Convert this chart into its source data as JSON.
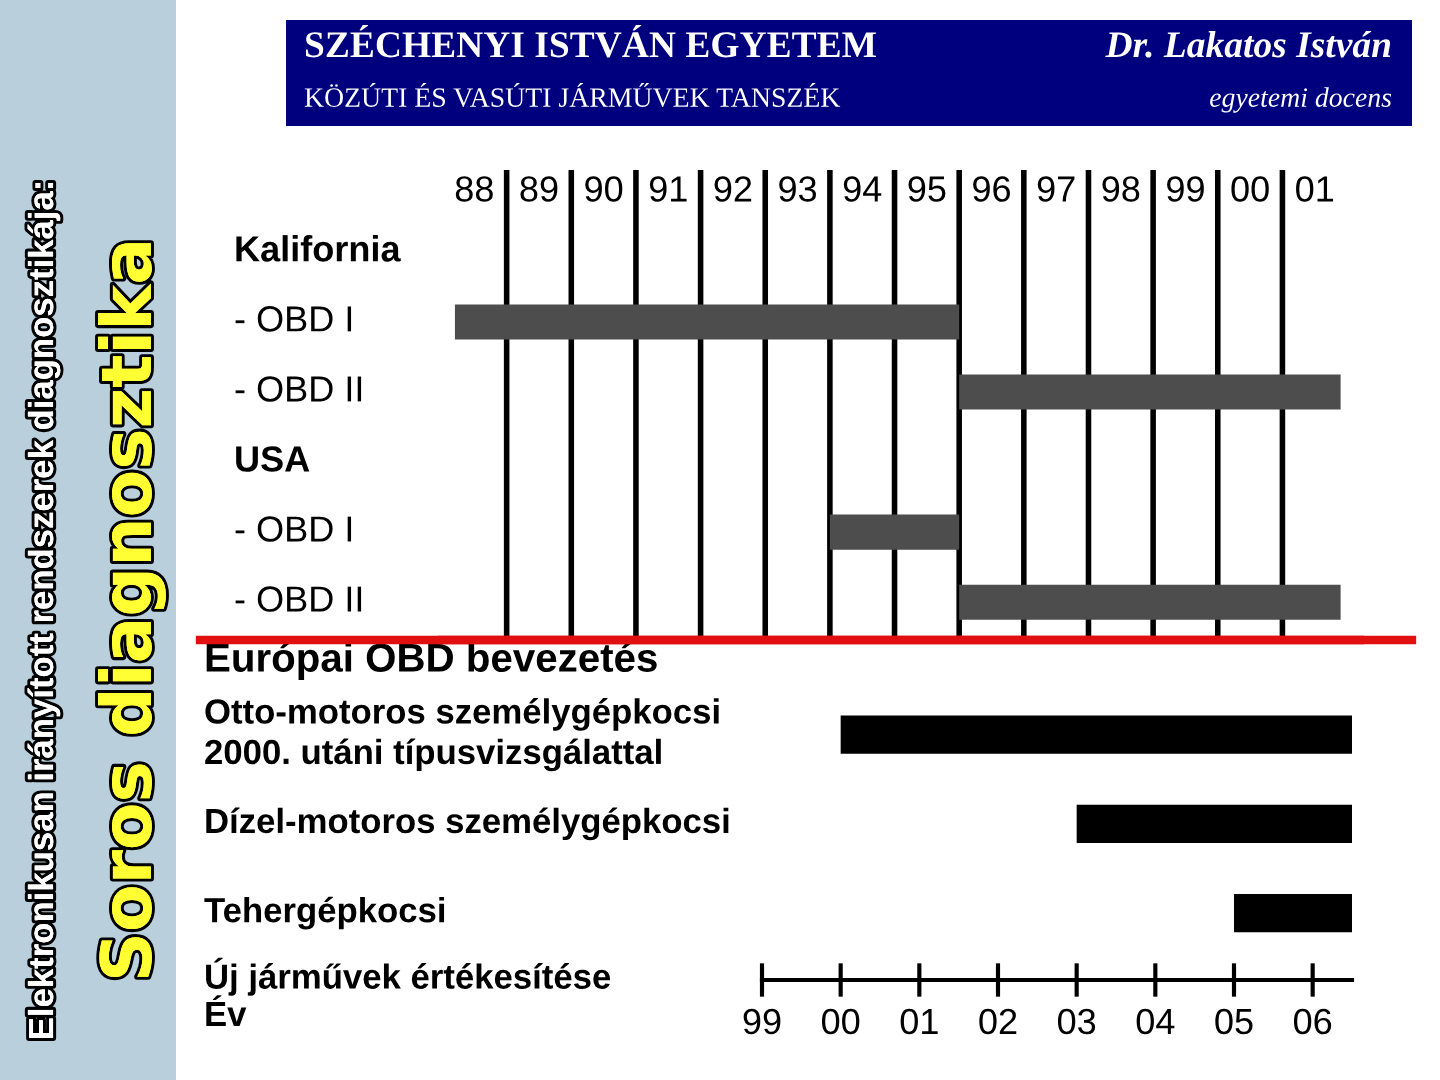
{
  "chart_data": [
    {
      "type": "bar",
      "orientation": "horizontal",
      "title": "Soros diagnosztika",
      "subtitle": "Elektronikusan irányított rendszerek diagnosztikája:",
      "annotations": [
        "SZÉCHENYI ISTVÁN EGYETEM",
        "KÖZÚTI ÉS VASÚTI JÁRMŰVEK TANSZÉK",
        "Dr. Lakatos István",
        "egyetemi docens"
      ],
      "categories": [
        "Kalifornia",
        "- OBD I",
        "- OBD II",
        "USA",
        "- OBD I",
        "- OBD II"
      ],
      "base": [
        null,
        1987.7,
        1995.5,
        null,
        1993.5,
        1995.5
      ],
      "values": [
        null,
        7.8,
        5.9,
        null,
        2,
        5.9
      ],
      "color": "#4d4d4d",
      "xlim": [
        1987.5,
        2001.7
      ],
      "xticks": [
        {
          "value": 1988,
          "label": "88"
        },
        {
          "value": 1989,
          "label": "89"
        },
        {
          "value": 1990,
          "label": "90"
        },
        {
          "value": 1991,
          "label": "91"
        },
        {
          "value": 1992,
          "label": "92"
        },
        {
          "value": 1993,
          "label": "93"
        },
        {
          "value": 1994,
          "label": "94"
        },
        {
          "value": 1995,
          "label": "95"
        },
        {
          "value": 1996,
          "label": "96"
        },
        {
          "value": 1997,
          "label": "97"
        },
        {
          "value": 1998,
          "label": "98"
        },
        {
          "value": 1999,
          "label": "99"
        },
        {
          "value": 2000,
          "label": "00"
        },
        {
          "value": 2001,
          "label": "01"
        },
        {
          "value": 1988.5,
          "label": null
        },
        {
          "value": 1989.5,
          "label": null
        },
        {
          "value": 1990.5,
          "label": null
        },
        {
          "value": 1991.5,
          "label": null
        },
        {
          "value": 1992.5,
          "label": null
        },
        {
          "value": 1993.5,
          "label": null
        },
        {
          "value": 1994.5,
          "label": null
        },
        {
          "value": 1995.5,
          "label": null
        },
        {
          "value": 1996.5,
          "label": null
        },
        {
          "value": 1997.5,
          "label": null
        },
        {
          "value": 1998.5,
          "label": null
        },
        {
          "value": 1999.5,
          "label": null
        },
        {
          "value": 2000.5,
          "label": null
        }
      ],
      "grid": "x"
    },
    {
      "type": "bar",
      "orientation": "horizontal",
      "title": "Európai OBD bevezetés",
      "xlabel": "Új járművek értékesítése\nÉv",
      "categories": [
        "Otto-motoros személygépkocsi\n2000. utáni típusvizsgálattal",
        "Dízel-motoros személygépkocsi",
        "Tehergépkocsi"
      ],
      "base": [
        2000,
        2003,
        2005
      ],
      "values": [
        6.5,
        3.5,
        1.5
      ],
      "color": "#000000",
      "xlim": [
        1999,
        2006.5
      ],
      "xticks": [
        {
          "value": 1999,
          "label": "99"
        },
        {
          "value": 2000,
          "label": "00"
        },
        {
          "value": 2001,
          "label": "01"
        },
        {
          "value": 2002,
          "label": "02"
        },
        {
          "value": 2003,
          "label": "03"
        },
        {
          "value": 2004,
          "label": "04"
        },
        {
          "value": 2005,
          "label": "05"
        },
        {
          "value": 2006,
          "label": "06"
        }
      ]
    }
  ]
}
